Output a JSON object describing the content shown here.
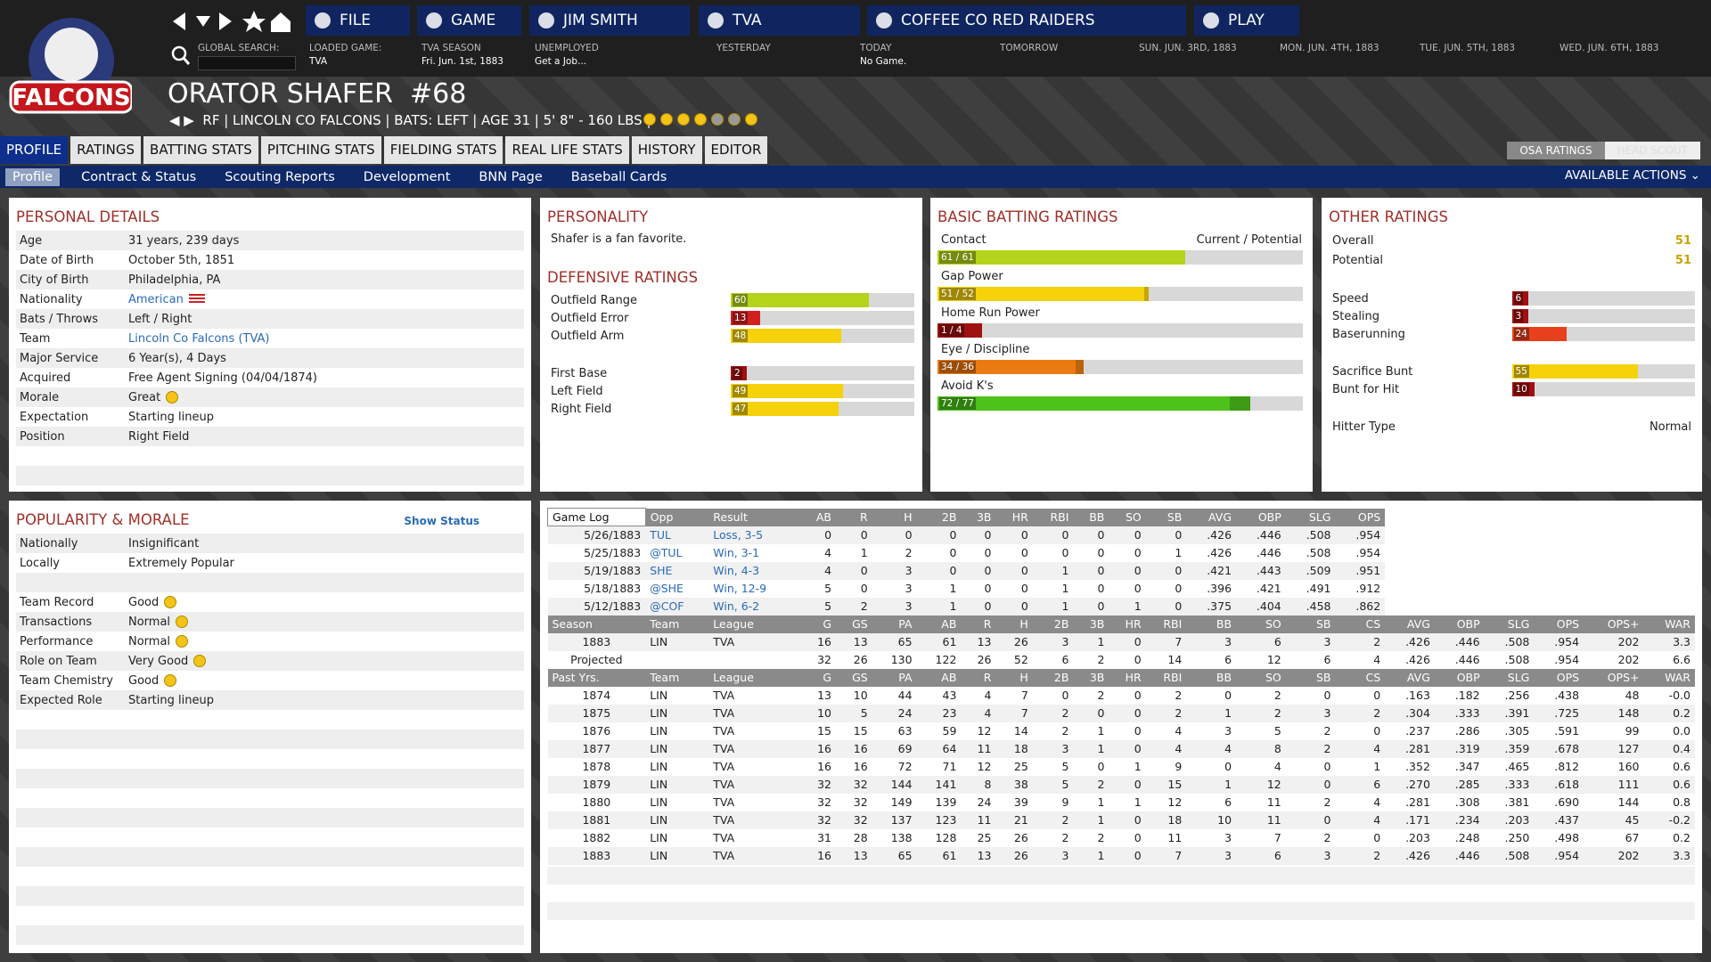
{
  "logo": "FALCONS",
  "nav": {
    "buttons": [
      "FILE",
      "GAME",
      "JIM SMITH",
      "TVA",
      "COFFEE CO RED RAIDERS",
      "PLAY"
    ],
    "info": [
      {
        "label": "GLOBAL SEARCH:"
      },
      {
        "label": "LOADED GAME:",
        "value": "TVA"
      },
      {
        "label": "TVA SEASON",
        "value": "Fri. Jun. 1st, 1883"
      },
      {
        "label": "UNEMPLOYED",
        "value": "Get a Job..."
      },
      {
        "label": "YESTERDAY"
      },
      {
        "label": "TODAY",
        "value": "No Game."
      },
      {
        "label": "TOMORROW"
      },
      {
        "label": "SUN. JUN. 3RD, 1883"
      },
      {
        "label": "MON. JUN. 4TH, 1883"
      },
      {
        "label": "TUE. JUN. 5TH, 1883"
      },
      {
        "label": "WED. JUN. 6TH, 1883"
      }
    ]
  },
  "player": {
    "name": "ORATOR SHAFER",
    "number": "#68",
    "info": "RF | LINCOLN CO FALCONS | BATS: LEFT | AGE 31 | 5' 8\" - 160 LBS |"
  },
  "tabs": [
    "PROFILE",
    "RATINGS",
    "BATTING STATS",
    "PITCHING STATS",
    "FIELDING STATS",
    "REAL LIFE STATS",
    "HISTORY",
    "EDITOR"
  ],
  "right_tabs": [
    "OSA RATINGS",
    "HEAD SCOUT"
  ],
  "subtabs": [
    "Profile",
    "Contract & Status",
    "Scouting Reports",
    "Development",
    "BNN Page",
    "Baseball Cards"
  ],
  "actions": "AVAILABLE ACTIONS",
  "personal": {
    "title": "PERSONAL DETAILS",
    "rows": [
      [
        "Age",
        "31 years, 239 days"
      ],
      [
        "Date of Birth",
        "October 5th, 1851"
      ],
      [
        "City of Birth",
        "Philadelphia, PA"
      ],
      [
        "Nationality",
        "American"
      ],
      [
        "Bats / Throws",
        "Left / Right"
      ],
      [
        "Team",
        "Lincoln Co Falcons (TVA)"
      ],
      [
        "Major Service",
        "6 Year(s), 4 Days"
      ],
      [
        "Acquired",
        "Free Agent Signing (04/04/1874)"
      ],
      [
        "Morale",
        "Great"
      ],
      [
        "Expectation",
        "Starting lineup"
      ],
      [
        "Position",
        "Right Field"
      ]
    ]
  },
  "popularity": {
    "title": "POPULARITY & MORALE",
    "link": "Show Status",
    "rows": [
      [
        "Nationally",
        "Insignificant"
      ],
      [
        "Locally",
        "Extremely Popular"
      ]
    ],
    "team_rows": [
      [
        "Team Record",
        "Good"
      ],
      [
        "Transactions",
        "Normal"
      ],
      [
        "Performance",
        "Normal"
      ],
      [
        "Role on Team",
        "Very Good"
      ],
      [
        "Team Chemistry",
        "Good"
      ],
      [
        "Expected Role",
        "Starting lineup"
      ]
    ]
  },
  "personality": {
    "title": "PERSONALITY",
    "text": "Shafer is a fan favorite."
  },
  "defensive": {
    "title": "DEFENSIVE RATINGS",
    "groups": [
      [
        {
          "name": "Outfield Range",
          "value": 60
        },
        {
          "name": "Outfield Error",
          "value": 13
        },
        {
          "name": "Outfield Arm",
          "value": 48
        }
      ],
      [
        {
          "name": "First Base",
          "value": 2
        },
        {
          "name": "Left Field",
          "value": 49
        },
        {
          "name": "Right Field",
          "value": 47
        }
      ]
    ]
  },
  "batting": {
    "title": "BASIC BATTING RATINGS",
    "legend": "Current / Potential",
    "items": [
      {
        "name": "Contact",
        "current": 61,
        "potential": 61,
        "label": "61 / 61"
      },
      {
        "name": "Gap Power",
        "current": 51,
        "potential": 52,
        "label": "51 / 52"
      },
      {
        "name": "Home Run Power",
        "current": 1,
        "potential": 4,
        "label": "1 / 4"
      },
      {
        "name": "Eye / Discipline",
        "current": 34,
        "potential": 36,
        "label": "34 / 36"
      },
      {
        "name": "Avoid K's",
        "current": 72,
        "potential": 77,
        "label": "72 / 77"
      }
    ]
  },
  "other": {
    "title": "OTHER RATINGS",
    "top": [
      {
        "name": "Overall",
        "value": 51
      },
      {
        "name": "Potential",
        "value": 51
      }
    ],
    "groups": [
      [
        {
          "name": "Speed",
          "value": 6
        },
        {
          "name": "Stealing",
          "value": 3
        },
        {
          "name": "Baserunning",
          "value": 24
        }
      ],
      [
        {
          "name": "Sacrifice Bunt",
          "value": 55
        },
        {
          "name": "Bunt for Hit",
          "value": 10
        }
      ]
    ],
    "hitter_type": [
      "Hitter Type",
      "Normal"
    ]
  },
  "game_log": {
    "header": [
      "Game Log",
      "Opp",
      "Result",
      "AB",
      "R",
      "H",
      "2B",
      "3B",
      "HR",
      "RBI",
      "BB",
      "SO",
      "SB",
      "AVG",
      "OBP",
      "SLG",
      "OPS"
    ],
    "rows": [
      [
        "5/26/1883",
        "TUL",
        "Loss, 3-5",
        "0",
        "0",
        "0",
        "0",
        "0",
        "0",
        "0",
        "0",
        "0",
        "0",
        ".426",
        ".446",
        ".508",
        ".954"
      ],
      [
        "5/25/1883",
        "@TUL",
        "Win, 3-1",
        "4",
        "1",
        "2",
        "0",
        "0",
        "0",
        "0",
        "0",
        "0",
        "1",
        ".426",
        ".446",
        ".508",
        ".954"
      ],
      [
        "5/19/1883",
        "SHE",
        "Win, 4-3",
        "4",
        "0",
        "3",
        "0",
        "0",
        "0",
        "1",
        "0",
        "0",
        "0",
        ".421",
        ".443",
        ".509",
        ".951"
      ],
      [
        "5/18/1883",
        "@SHE",
        "Win, 12-9",
        "5",
        "0",
        "3",
        "1",
        "0",
        "0",
        "1",
        "0",
        "0",
        "0",
        ".396",
        ".421",
        ".491",
        ".912"
      ],
      [
        "5/12/1883",
        "@COF",
        "Win, 6-2",
        "5",
        "2",
        "3",
        "1",
        "0",
        "0",
        "1",
        "0",
        "1",
        "0",
        ".375",
        ".404",
        ".458",
        ".862"
      ]
    ]
  },
  "season": {
    "header": [
      "Season",
      "Team",
      "League",
      "G",
      "GS",
      "PA",
      "AB",
      "R",
      "H",
      "2B",
      "3B",
      "HR",
      "RBI",
      "BB",
      "SO",
      "SB",
      "CS",
      "AVG",
      "OBP",
      "SLG",
      "OPS",
      "OPS+",
      "WAR"
    ],
    "rows": [
      [
        "1883",
        "LIN",
        "TVA",
        "16",
        "13",
        "65",
        "61",
        "13",
        "26",
        "3",
        "1",
        "0",
        "7",
        "3",
        "6",
        "3",
        "2",
        ".426",
        ".446",
        ".508",
        ".954",
        "202",
        "3.3"
      ],
      [
        "Projected",
        null,
        null,
        "32",
        "26",
        "130",
        "122",
        "26",
        "52",
        "6",
        "2",
        "0",
        "14",
        "6",
        "12",
        "6",
        "4",
        ".426",
        ".446",
        ".508",
        ".954",
        "202",
        "6.6"
      ]
    ]
  },
  "past": {
    "header": [
      "Past Yrs.",
      "Team",
      "League",
      "G",
      "GS",
      "PA",
      "AB",
      "R",
      "H",
      "2B",
      "3B",
      "HR",
      "RBI",
      "BB",
      "SO",
      "SB",
      "CS",
      "AVG",
      "OBP",
      "SLG",
      "OPS",
      "OPS+",
      "WAR"
    ],
    "rows": [
      [
        "1874",
        "LIN",
        "TVA",
        "13",
        "10",
        "44",
        "43",
        "4",
        "7",
        "0",
        "2",
        "0",
        "2",
        "0",
        "2",
        "0",
        "0",
        ".163",
        ".182",
        ".256",
        ".438",
        "48",
        "-0.0"
      ],
      [
        "1875",
        "LIN",
        "TVA",
        "10",
        "5",
        "24",
        "23",
        "4",
        "7",
        "2",
        "0",
        "0",
        "2",
        "1",
        "2",
        "3",
        "2",
        ".304",
        ".333",
        ".391",
        ".725",
        "148",
        "0.2"
      ],
      [
        "1876",
        "LIN",
        "TVA",
        "15",
        "15",
        "63",
        "59",
        "12",
        "14",
        "2",
        "1",
        "0",
        "4",
        "3",
        "5",
        "2",
        "0",
        ".237",
        ".286",
        ".305",
        ".591",
        "99",
        "0.0"
      ],
      [
        "1877",
        "LIN",
        "TVA",
        "16",
        "16",
        "69",
        "64",
        "11",
        "18",
        "3",
        "1",
        "0",
        "4",
        "4",
        "8",
        "2",
        "4",
        ".281",
        ".319",
        ".359",
        ".678",
        "127",
        "0.4"
      ],
      [
        "1878",
        "LIN",
        "TVA",
        "16",
        "16",
        "72",
        "71",
        "12",
        "25",
        "5",
        "0",
        "1",
        "9",
        "0",
        "4",
        "0",
        "1",
        ".352",
        ".347",
        ".465",
        ".812",
        "160",
        "0.6"
      ],
      [
        "1879",
        "LIN",
        "TVA",
        "32",
        "32",
        "144",
        "141",
        "8",
        "38",
        "5",
        "2",
        "0",
        "15",
        "1",
        "12",
        "0",
        "6",
        ".270",
        ".285",
        ".333",
        ".618",
        "111",
        "0.6"
      ],
      [
        "1880",
        "LIN",
        "TVA",
        "32",
        "32",
        "149",
        "139",
        "24",
        "39",
        "9",
        "1",
        "1",
        "12",
        "6",
        "11",
        "2",
        "4",
        ".281",
        ".308",
        ".381",
        ".690",
        "144",
        "0.8"
      ],
      [
        "1881",
        "LIN",
        "TVA",
        "32",
        "32",
        "137",
        "123",
        "11",
        "21",
        "2",
        "1",
        "0",
        "18",
        "10",
        "11",
        "0",
        "4",
        ".171",
        ".234",
        ".203",
        ".437",
        "45",
        "-0.2"
      ],
      [
        "1882",
        "LIN",
        "TVA",
        "31",
        "28",
        "138",
        "128",
        "25",
        "26",
        "2",
        "2",
        "0",
        "11",
        "3",
        "7",
        "2",
        "0",
        ".203",
        ".248",
        ".250",
        ".498",
        "67",
        "0.2"
      ],
      [
        "1883",
        "LIN",
        "TVA",
        "16",
        "13",
        "65",
        "61",
        "13",
        "26",
        "3",
        "1",
        "0",
        "7",
        "3",
        "6",
        "3",
        "2",
        ".426",
        ".446",
        ".508",
        ".954",
        "202",
        "3.3"
      ]
    ]
  }
}
